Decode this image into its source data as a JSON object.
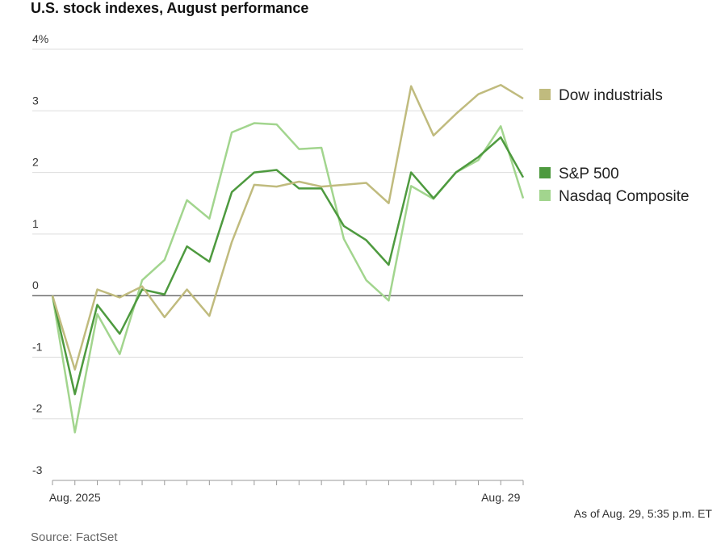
{
  "chart_data": {
    "type": "line",
    "title": "U.S. stock indexes, August performance",
    "note": "As of Aug. 29, 5:35 p.m. ET",
    "source": "Source: FactSet",
    "categories": [
      null,
      "Aug. 2025",
      null,
      null,
      null,
      null,
      null,
      null,
      null,
      null,
      null,
      null,
      null,
      null,
      null,
      null,
      null,
      null,
      null,
      null,
      "Aug. 29",
      null
    ],
    "series": [
      {
        "name": "Dow industrials",
        "color": "#c0bb7e",
        "values": [
          0,
          -1.2,
          0.1,
          -0.03,
          0.15,
          -0.35,
          0.1,
          -0.33,
          0.87,
          1.8,
          1.77,
          1.85,
          1.77,
          1.8,
          1.83,
          1.5,
          3.4,
          2.6,
          2.95,
          3.27,
          3.42,
          3.2
        ]
      },
      {
        "name": "S&P 500",
        "color": "#4e9a3f",
        "values": [
          0,
          -1.6,
          -0.15,
          -0.62,
          0.1,
          0.02,
          0.8,
          0.55,
          1.68,
          2.0,
          2.04,
          1.74,
          1.74,
          1.13,
          0.9,
          0.5,
          2.0,
          1.58,
          2.0,
          2.25,
          2.57,
          1.92
        ]
      },
      {
        "name": "Nasdaq Composite",
        "color": "#a2d58e",
        "values": [
          0,
          -2.22,
          -0.3,
          -0.95,
          0.25,
          0.58,
          1.55,
          1.25,
          2.65,
          2.8,
          2.78,
          2.38,
          2.4,
          0.92,
          0.25,
          -0.08,
          1.78,
          1.57,
          2.0,
          2.2,
          2.75,
          1.58
        ]
      }
    ],
    "ylim": [
      -3,
      4
    ],
    "yticks": [
      {
        "value": 4,
        "label": "4%"
      },
      3,
      2,
      1,
      0,
      -1,
      -2,
      -3
    ],
    "grid": true
  }
}
